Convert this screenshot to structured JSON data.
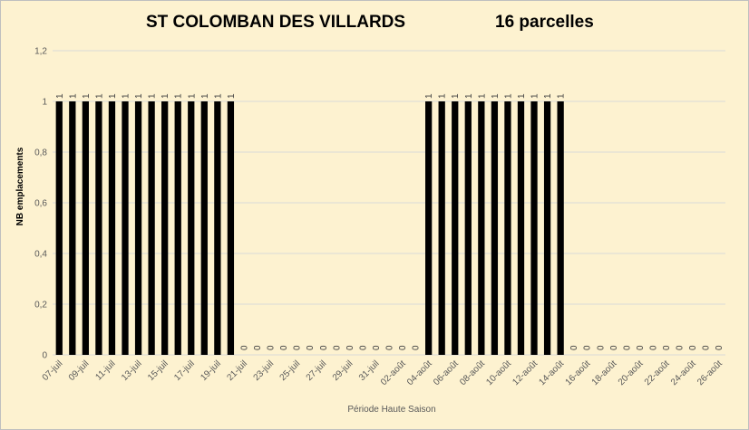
{
  "chart_data": {
    "type": "bar",
    "title": "ST COLOMBAN DES VILLARDS",
    "subtitle": "16 parcelles",
    "xlabel": "Période Haute Saison",
    "ylabel": "NB emplacements",
    "ylim": [
      0,
      1.2
    ],
    "yticks": [
      "0",
      "0,2",
      "0,4",
      "0,6",
      "0,8",
      "1",
      "1,2"
    ],
    "ytick_values": [
      0,
      0.2,
      0.4,
      0.6,
      0.8,
      1,
      1.2
    ],
    "grid": true,
    "data_labels": true,
    "bar_color": "#000000",
    "categories": [
      "07-juil",
      "08-juil",
      "09-juil",
      "10-juil",
      "11-juil",
      "12-juil",
      "13-juil",
      "14-juil",
      "15-juil",
      "16-juil",
      "17-juil",
      "18-juil",
      "19-juil",
      "20-juil",
      "21-juil",
      "22-juil",
      "23-juil",
      "24-juil",
      "25-juil",
      "26-juil",
      "27-juil",
      "28-juil",
      "29-juil",
      "30-juil",
      "31-juil",
      "01-août",
      "02-août",
      "03-août",
      "04-août",
      "05-août",
      "06-août",
      "07-août",
      "08-août",
      "09-août",
      "10-août",
      "11-août",
      "12-août",
      "13-août",
      "14-août",
      "15-août",
      "16-août",
      "17-août",
      "18-août",
      "19-août",
      "20-août",
      "21-août",
      "22-août",
      "23-août",
      "24-août",
      "25-août",
      "26-août"
    ],
    "shown_tick_labels": [
      "07-juil",
      "09-juil",
      "11-juil",
      "13-juil",
      "15-juil",
      "17-juil",
      "19-juil",
      "21-juil",
      "23-juil",
      "25-juil",
      "27-juil",
      "29-juil",
      "31-juil",
      "02-août",
      "04-août",
      "06-août",
      "08-août",
      "10-août",
      "12-août",
      "14-août",
      "16-août",
      "18-août",
      "20-août",
      "22-août",
      "24-août",
      "26-août"
    ],
    "values": [
      1,
      1,
      1,
      1,
      1,
      1,
      1,
      1,
      1,
      1,
      1,
      1,
      1,
      1,
      0,
      0,
      0,
      0,
      0,
      0,
      0,
      0,
      0,
      0,
      0,
      0,
      0,
      0,
      1,
      1,
      1,
      1,
      1,
      1,
      1,
      1,
      1,
      1,
      1,
      0,
      0,
      0,
      0,
      0,
      0,
      0,
      0,
      0,
      0,
      0,
      0
    ]
  }
}
